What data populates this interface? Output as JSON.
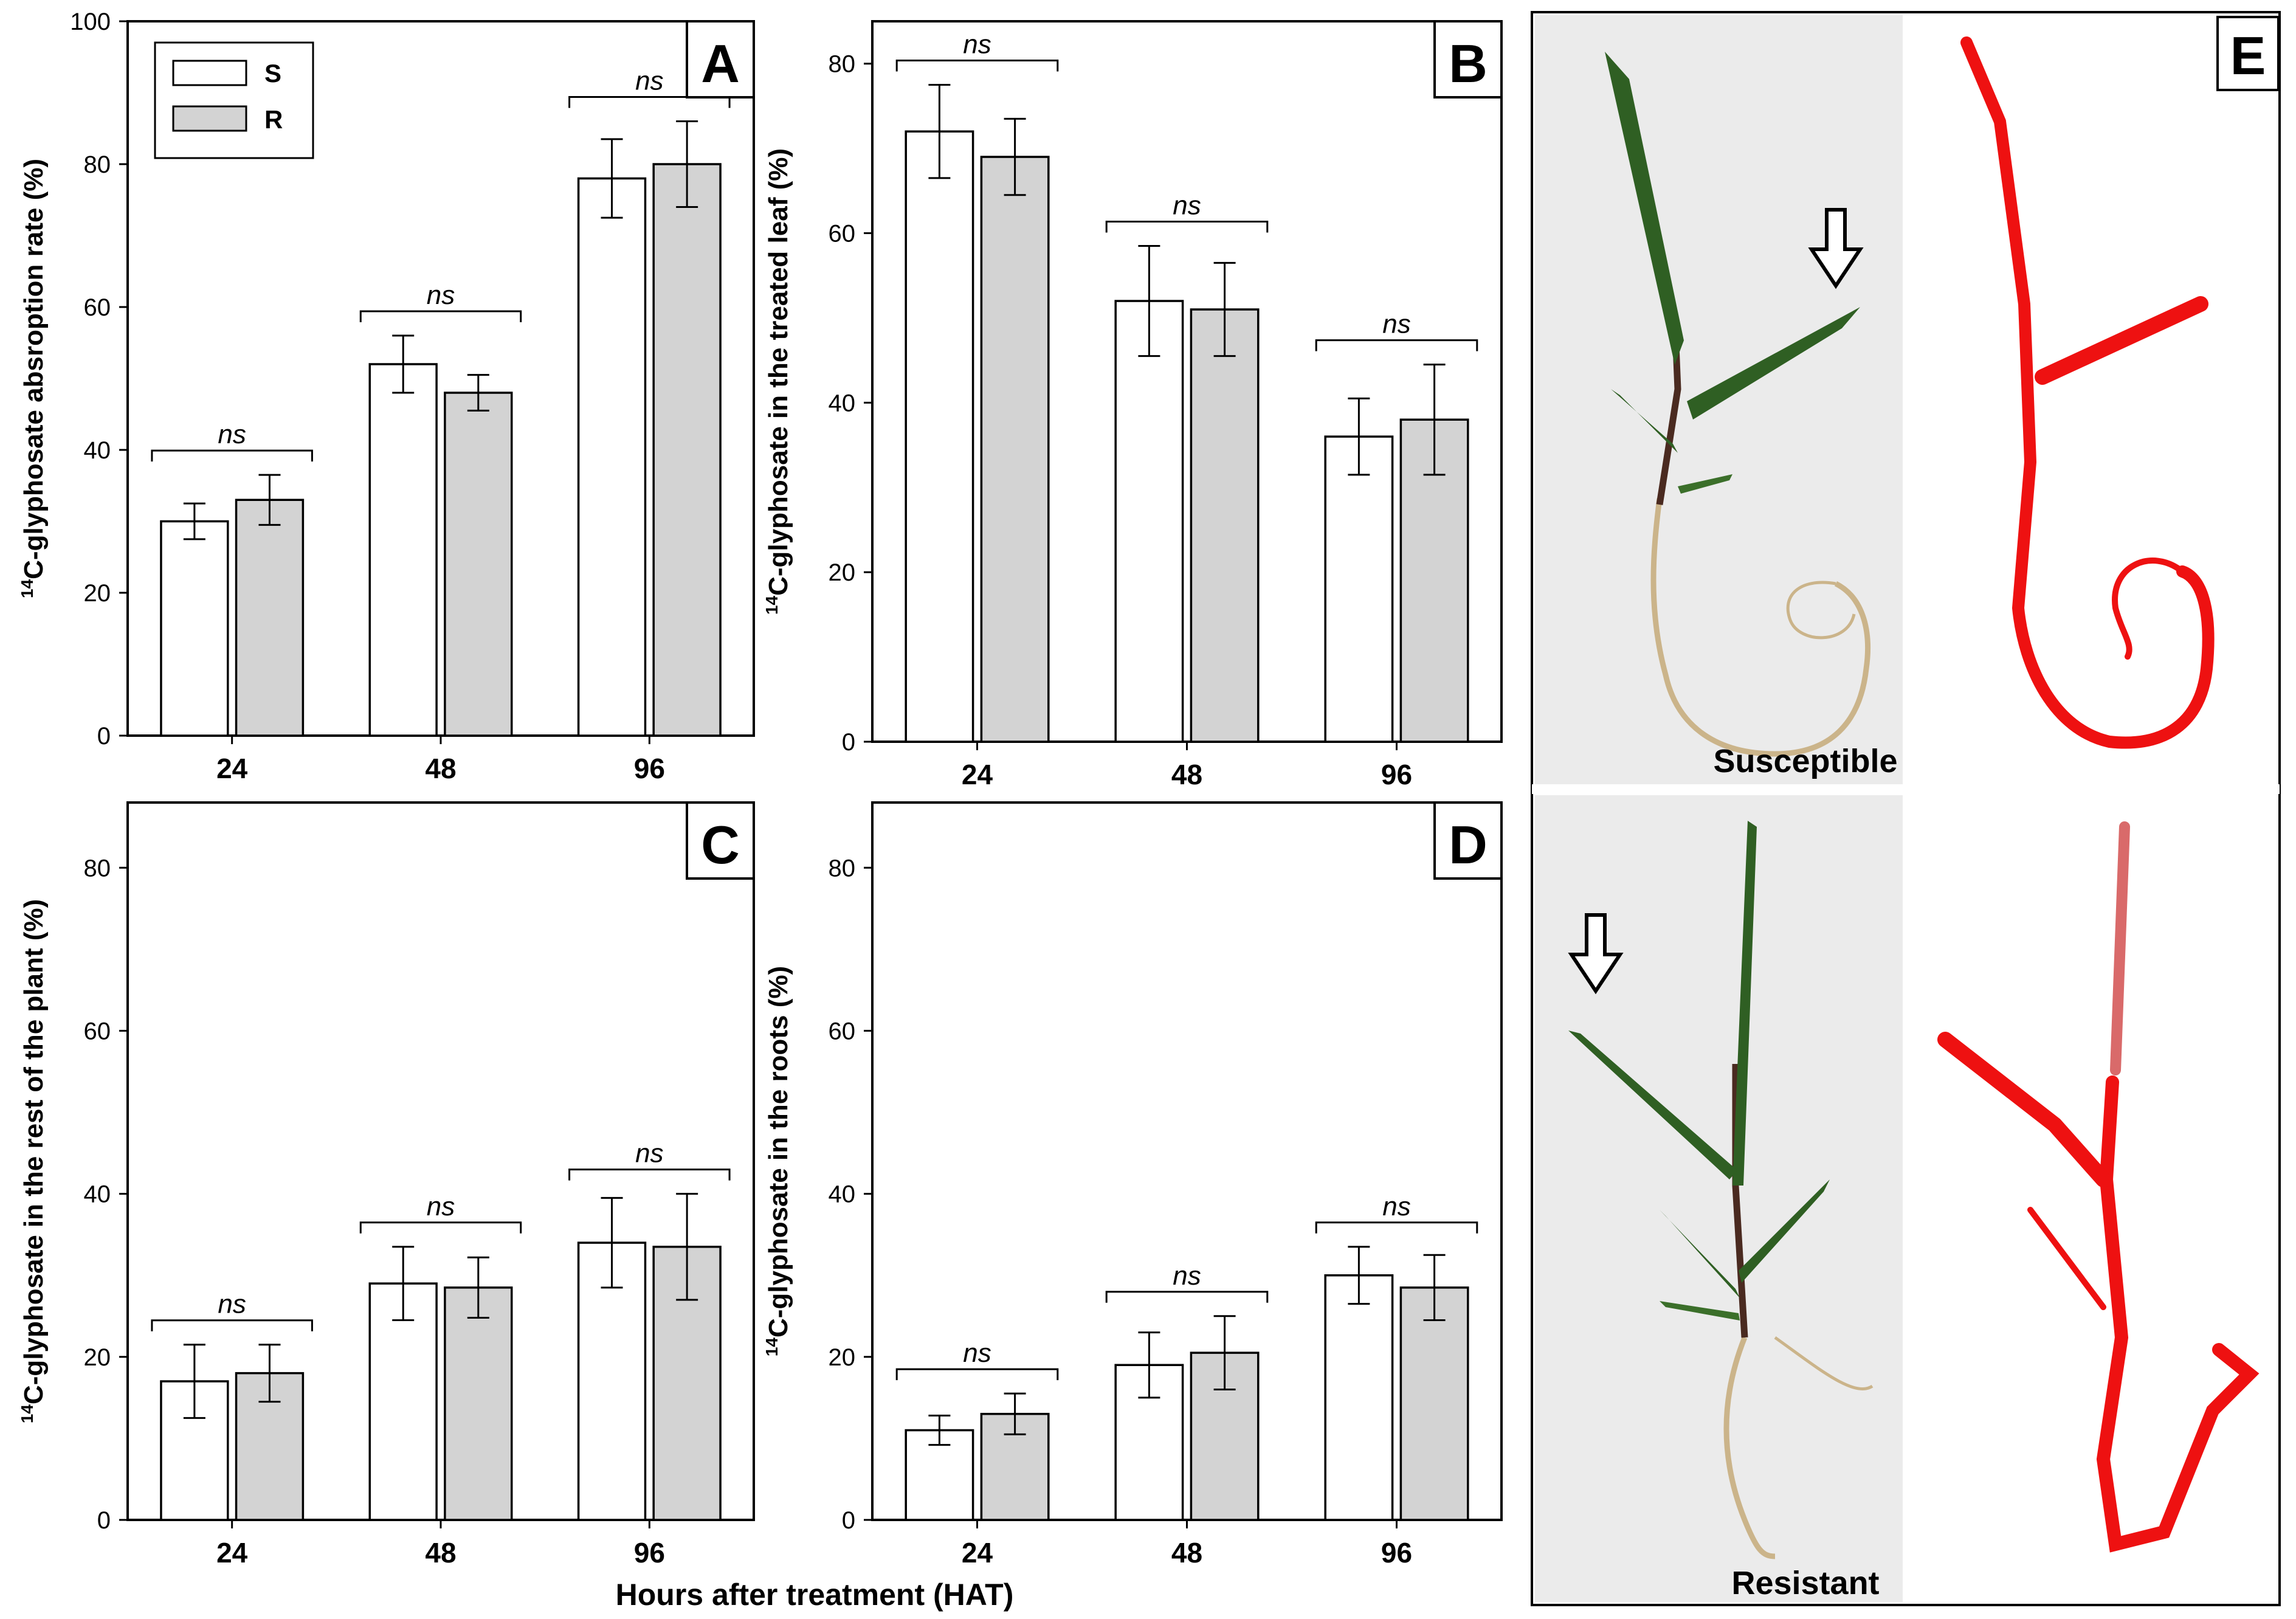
{
  "colors": {
    "S": "#ffffff",
    "R": "#d3d3d3",
    "stroke": "#000000",
    "stain": "#ee1111",
    "leaf": "#2f5f23",
    "root": "#cbb48a",
    "photoBg": "#ebebeb"
  },
  "legend": {
    "items": [
      {
        "key": "S",
        "label": "S"
      },
      {
        "key": "R",
        "label": "R"
      }
    ]
  },
  "shared": {
    "xlabel": "Hours after treatment (HAT)",
    "significance": "ns"
  },
  "chart_data": [
    {
      "panel": "A",
      "type": "bar",
      "ylabel": "14C-glyphosate absroption rate (%)",
      "ylim": [
        0,
        100
      ],
      "yticks": [
        0,
        20,
        40,
        60,
        80,
        100
      ],
      "categories": [
        "24",
        "48",
        "96"
      ],
      "series": [
        {
          "name": "S",
          "values": [
            30,
            52,
            78
          ],
          "errors": [
            2.5,
            4,
            5.5
          ]
        },
        {
          "name": "R",
          "values": [
            33,
            48,
            80
          ],
          "errors": [
            3.5,
            2.5,
            6
          ]
        }
      ],
      "annotations": [
        "ns",
        "ns",
        "ns"
      ]
    },
    {
      "panel": "B",
      "type": "bar",
      "ylabel": "14C-glyphosate in the treated leaf (%)",
      "ylim": [
        0,
        85
      ],
      "yticks": [
        0,
        20,
        40,
        60,
        80
      ],
      "categories": [
        "24",
        "48",
        "96"
      ],
      "series": [
        {
          "name": "S",
          "values": [
            72,
            52,
            36
          ],
          "errors": [
            5.5,
            6.5,
            4.5
          ]
        },
        {
          "name": "R",
          "values": [
            69,
            51,
            38
          ],
          "errors": [
            4.5,
            5.5,
            6.5
          ]
        }
      ],
      "annotations": [
        "ns",
        "ns",
        "ns"
      ]
    },
    {
      "panel": "C",
      "type": "bar",
      "ylabel": "14C-glyphosate in the rest of the plant (%)",
      "ylim": [
        0,
        88
      ],
      "yticks": [
        0,
        20,
        40,
        60,
        80
      ],
      "categories": [
        "24",
        "48",
        "96"
      ],
      "series": [
        {
          "name": "S",
          "values": [
            17,
            29,
            34
          ],
          "errors": [
            4.5,
            4.5,
            5.5
          ]
        },
        {
          "name": "R",
          "values": [
            18,
            28.5,
            33.5
          ],
          "errors": [
            3.5,
            3.7,
            6.5
          ]
        }
      ],
      "annotations": [
        "ns",
        "ns",
        "ns"
      ]
    },
    {
      "panel": "D",
      "type": "bar",
      "ylabel": "14C-glyphosate in the roots (%)",
      "ylim": [
        0,
        88
      ],
      "yticks": [
        0,
        20,
        40,
        60,
        80
      ],
      "categories": [
        "24",
        "48",
        "96"
      ],
      "series": [
        {
          "name": "S",
          "values": [
            11,
            19,
            30
          ],
          "errors": [
            1.8,
            4,
            3.5
          ]
        },
        {
          "name": "R",
          "values": [
            13,
            20.5,
            28.5
          ],
          "errors": [
            2.5,
            4.5,
            4
          ]
        }
      ],
      "annotations": [
        "ns",
        "ns",
        "ns"
      ]
    }
  ],
  "photo_panel": {
    "letter": "E",
    "top_label": "Susceptible",
    "bottom_label": "Resistant"
  }
}
